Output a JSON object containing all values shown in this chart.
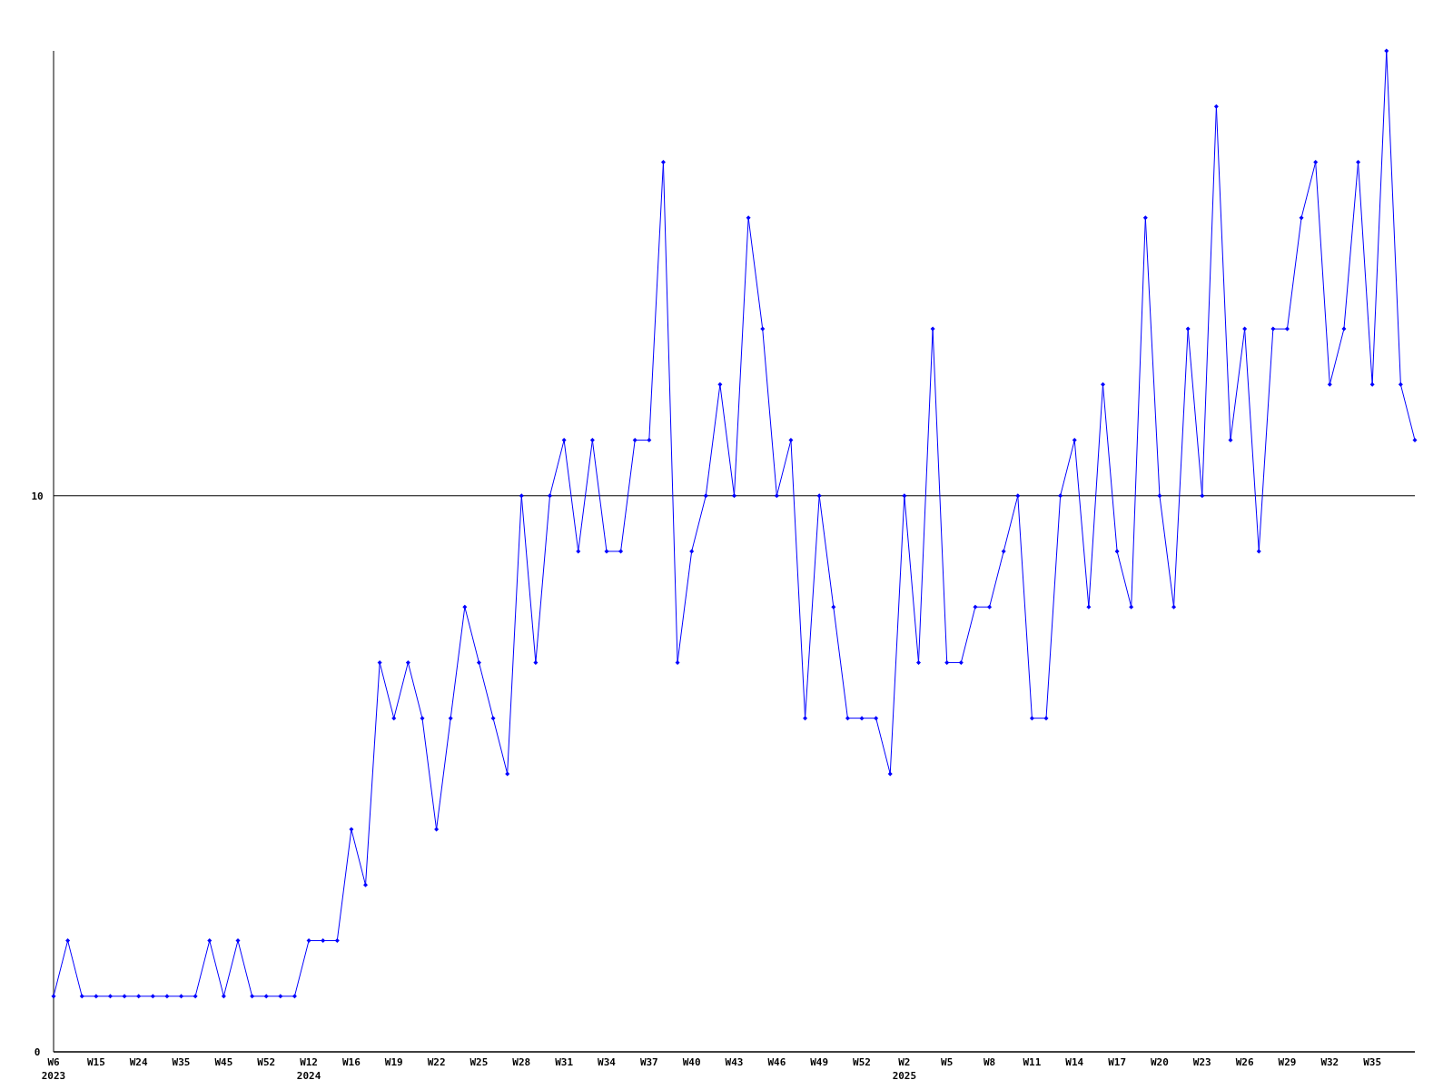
{
  "chart_data": {
    "type": "line",
    "categories": [
      "W6\n2023",
      null,
      null,
      "W15",
      null,
      null,
      "W24",
      null,
      null,
      "W35",
      null,
      null,
      "W45",
      null,
      null,
      "W52",
      null,
      null,
      "W12\n2024",
      null,
      null,
      "W16",
      null,
      null,
      "W19",
      null,
      null,
      "W22",
      null,
      null,
      "W25",
      null,
      null,
      "W28",
      null,
      null,
      "W31",
      null,
      null,
      "W34",
      null,
      null,
      "W37",
      null,
      null,
      "W40",
      null,
      null,
      "W43",
      null,
      null,
      "W46",
      null,
      null,
      "W49",
      null,
      null,
      "W52",
      null,
      null,
      "W2\n2025",
      null,
      null,
      "W5",
      null,
      null,
      "W8",
      null,
      null,
      "W11",
      null,
      null,
      "W14",
      null,
      null,
      "W17",
      null,
      null,
      "W20",
      null,
      null,
      "W23",
      null,
      null,
      "W26",
      null,
      null,
      "W29",
      null,
      null,
      "W32",
      null,
      null,
      "W35",
      null,
      null,
      null
    ],
    "series": [
      {
        "color": "#0000ff",
        "values": [
          1,
          2,
          1,
          1,
          1,
          1,
          1,
          1,
          1,
          1,
          1,
          2,
          1,
          2,
          1,
          1,
          1,
          1,
          2,
          2,
          2,
          4,
          3,
          7,
          6,
          7,
          6,
          4,
          6,
          8,
          7,
          6,
          5,
          10,
          7,
          10,
          11,
          9,
          11,
          9,
          9,
          11,
          11,
          16,
          7,
          9,
          10,
          12,
          10,
          15,
          13,
          10,
          11,
          6,
          10,
          8,
          6,
          6,
          6,
          5,
          10,
          7,
          13,
          7,
          7,
          8,
          8,
          9,
          10,
          6,
          6,
          10,
          11,
          8,
          12,
          9,
          8,
          15,
          10,
          8,
          13,
          10,
          17,
          11,
          13,
          9,
          13,
          13,
          15,
          16,
          12,
          13,
          16,
          12,
          18,
          12,
          11
        ]
      }
    ],
    "ylim": [
      0,
      18
    ],
    "yticks": [
      0,
      10
    ],
    "grid": "y",
    "marker": "diamond",
    "line_style": "solid"
  }
}
